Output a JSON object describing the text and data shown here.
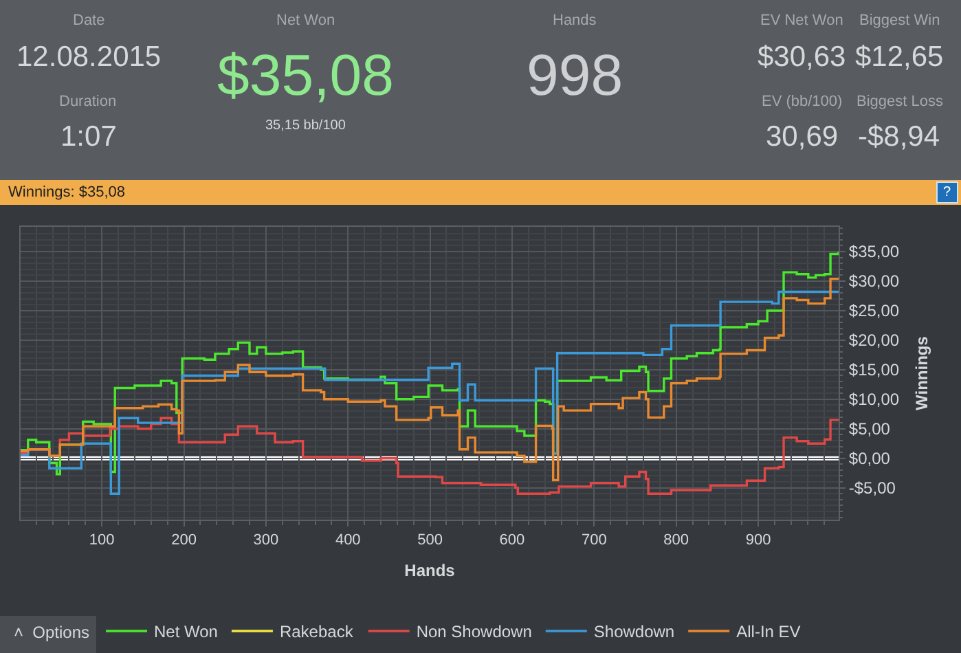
{
  "chart_data": {
    "type": "step",
    "title": "Winnings: $35,08",
    "xlabel": "Hands",
    "ylabel": "Winnings",
    "xlim": [
      1,
      998
    ],
    "ylim": [
      -10.4,
      39.2
    ],
    "xticks": [
      100,
      200,
      300,
      400,
      500,
      600,
      700,
      800,
      900
    ],
    "yticks": [
      {
        "value": -5,
        "label": "-$5,00"
      },
      {
        "value": 0,
        "label": "$0,00"
      },
      {
        "value": 5,
        "label": "$5,00"
      },
      {
        "value": 10,
        "label": "$10,00"
      },
      {
        "value": 15,
        "label": "$15,00"
      },
      {
        "value": 20,
        "label": "$20,00"
      },
      {
        "value": 25,
        "label": "$25,00"
      },
      {
        "value": 30,
        "label": "$30,00"
      },
      {
        "value": 35,
        "label": "$35,00"
      }
    ],
    "grid": true,
    "legend": "bottom",
    "ref_lines": [
      {
        "axis": "y",
        "value": 0,
        "color": "#ffffff"
      }
    ],
    "series": [
      {
        "name": "Net Won",
        "color": "#4be62e",
        "x": [
          1,
          10,
          20,
          36,
          45,
          49,
          77,
          90,
          111,
          116,
          140,
          172,
          185,
          191,
          198,
          225,
          238,
          255,
          266,
          280,
          289,
          300,
          320,
          333,
          345,
          367,
          371,
          400,
          440,
          445,
          459,
          480,
          498,
          515,
          534,
          536,
          546,
          555,
          606,
          615,
          629,
          640,
          646,
          650,
          655,
          696,
          715,
          733,
          755,
          763,
          766,
          785,
          794,
          813,
          825,
          845,
          853,
          854,
          886,
          900,
          911,
          931,
          947,
          961,
          970,
          981,
          988,
          998
        ],
        "values": [
          1.4,
          3.1,
          2.7,
          -0.8,
          -2.7,
          2.3,
          6.2,
          5.8,
          -2.3,
          11.9,
          12.3,
          13.1,
          12.7,
          7.7,
          16.9,
          16.7,
          17.7,
          18.5,
          19.6,
          17.7,
          18.8,
          17.7,
          17.9,
          18.1,
          15.4,
          15.0,
          13.5,
          13.3,
          13.8,
          12.7,
          10.0,
          10.4,
          12.3,
          11.5,
          11.7,
          5.4,
          8.1,
          5.4,
          4.6,
          3.8,
          9.8,
          9.6,
          9.2,
          0.8,
          13.1,
          13.7,
          13.2,
          14.8,
          15.5,
          14.6,
          11.4,
          13.5,
          16.9,
          17.3,
          17.8,
          18.3,
          18.5,
          22.2,
          22.7,
          23.2,
          25.0,
          31.5,
          31.2,
          30.6,
          31.0,
          31.2,
          34.6,
          35.0
        ]
      },
      {
        "name": "Rakeback",
        "color": "#f2e640",
        "values": [
          null
        ]
      },
      {
        "name": "Non Showdown",
        "color": "#e04848",
        "x": [
          1,
          10,
          36,
          49,
          60,
          77,
          110,
          121,
          144,
          160,
          172,
          185,
          194,
          233,
          250,
          266,
          289,
          311,
          333,
          345,
          417,
          440,
          459,
          461,
          507,
          515,
          562,
          604,
          607,
          646,
          657,
          696,
          730,
          738,
          755,
          763,
          766,
          783,
          794,
          842,
          886,
          908,
          925,
          931,
          947,
          961,
          981,
          988,
          998
        ],
        "values": [
          0.8,
          1.5,
          0.4,
          3.1,
          4.2,
          3.8,
          5.0,
          5.4,
          5.0,
          5.8,
          6.8,
          5.8,
          2.7,
          2.7,
          4.0,
          5.4,
          4.2,
          2.7,
          2.9,
          0.2,
          -0.4,
          0.0,
          -0.8,
          -3.1,
          -3.2,
          -4.2,
          -4.5,
          -5.0,
          -6.0,
          -5.8,
          -4.8,
          -4.2,
          -4.8,
          -3.1,
          -2.3,
          -3.5,
          -6.0,
          -6.0,
          -5.4,
          -4.6,
          -3.8,
          -1.7,
          -1.5,
          3.5,
          2.9,
          2.5,
          3.2,
          6.5,
          6.5
        ]
      },
      {
        "name": "Showdown",
        "color": "#3b9ad9",
        "x": [
          1,
          10,
          36,
          75,
          111,
          121,
          144,
          198,
          266,
          372,
          498,
          527,
          536,
          546,
          555,
          629,
          650,
          655,
          760,
          783,
          794,
          854,
          917,
          925,
          998
        ],
        "values": [
          0.5,
          1.5,
          -1.7,
          2.5,
          -6.0,
          6.8,
          6.0,
          14.0,
          15.2,
          13.3,
          15.3,
          16.0,
          9.8,
          12.5,
          9.8,
          15.2,
          0.8,
          17.8,
          17.5,
          18.5,
          22.5,
          26.5,
          26.2,
          28.2,
          28.2
        ]
      },
      {
        "name": "All-In EV",
        "color": "#e8892f",
        "x": [
          1,
          10,
          36,
          49,
          77,
          116,
          150,
          169,
          185,
          191,
          194,
          198,
          238,
          250,
          266,
          280,
          300,
          333,
          345,
          367,
          371,
          400,
          440,
          445,
          459,
          498,
          501,
          515,
          534,
          536,
          546,
          555,
          606,
          615,
          629,
          649,
          650,
          656,
          663,
          696,
          730,
          735,
          755,
          763,
          766,
          785,
          794,
          813,
          825,
          853,
          854,
          886,
          908,
          925,
          931,
          947,
          961,
          981,
          988,
          998
        ],
        "values": [
          1.2,
          1.5,
          0.4,
          2.3,
          5.4,
          8.5,
          8.8,
          9.1,
          8.3,
          8.1,
          4.2,
          13.1,
          13.2,
          14.6,
          15.8,
          14.6,
          14.0,
          14.2,
          11.5,
          11.2,
          10.0,
          9.6,
          9.8,
          8.8,
          6.5,
          6.8,
          8.6,
          7.3,
          8.1,
          1.5,
          3.5,
          1.0,
          0.4,
          -0.6,
          5.5,
          5.0,
          -3.7,
          8.8,
          8.1,
          9.2,
          8.5,
          10.2,
          11.2,
          10.0,
          6.9,
          8.8,
          12.7,
          13.1,
          13.5,
          13.8,
          17.7,
          18.3,
          20.4,
          20.8,
          27.1,
          26.8,
          26.2,
          27.1,
          30.4,
          30.6
        ]
      }
    ],
    "annotations": [
      "Date",
      "12.08.2015",
      "Duration",
      "1:07",
      "Net Won",
      "$35,08",
      "35,15 bb/100",
      "Hands",
      "998",
      "EV Net Won",
      "$30,63",
      "Biggest Win",
      "$12,65",
      "EV (bb/100)",
      "30,69",
      "Biggest Loss",
      "-$8,94",
      "˄  Options",
      "?"
    ]
  }
}
